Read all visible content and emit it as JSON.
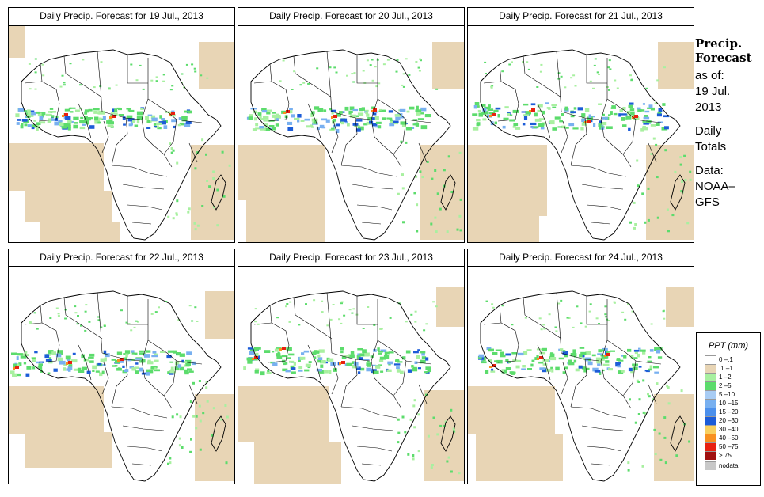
{
  "panels": [
    {
      "title": "Daily Precip. Forecast for  19 Jul., 2013",
      "variant": 0
    },
    {
      "title": "Daily Precip. Forecast for  20 Jul., 2013",
      "variant": 1
    },
    {
      "title": "Daily Precip. Forecast for  21 Jul., 2013",
      "variant": 2
    },
    {
      "title": "Daily Precip. Forecast for  22 Jul., 2013",
      "variant": 3
    },
    {
      "title": "Daily Precip. Forecast for  23 Jul., 2013",
      "variant": 4
    },
    {
      "title": "Daily Precip. Forecast for  24 Jul., 2013",
      "variant": 5
    }
  ],
  "side_info": {
    "title_line1": "Precip.",
    "title_line2": "Forecast",
    "as_of": "as of:",
    "date_line1": "19 Jul.",
    "date_line2": "2013",
    "daily_line1": "Daily",
    "daily_line2": "Totals",
    "data_line1": "Data:",
    "data_line2": "NOAA–",
    "data_line3": "GFS"
  },
  "legend": {
    "title": "PPT (mm)",
    "items": [
      {
        "label": "0 –.1",
        "color": "#ffffff"
      },
      {
        "label": ".1 –1",
        "color": "#e8d5b5"
      },
      {
        "label": "1 –2",
        "color": "#a8f0a0"
      },
      {
        "label": "2 –5",
        "color": "#5cdc6c"
      },
      {
        "label": "5 –10",
        "color": "#a8ccf4"
      },
      {
        "label": "10 –15",
        "color": "#78b0f0"
      },
      {
        "label": "15 –20",
        "color": "#4c90ec"
      },
      {
        "label": "20 –30",
        "color": "#1c5cd8"
      },
      {
        "label": "30 –40",
        "color": "#f8d060"
      },
      {
        "label": "40 –50",
        "color": "#f89020"
      },
      {
        "label": "50 –75",
        "color": "#e82010"
      },
      {
        "label": "> 75",
        "color": "#a01010"
      },
      {
        "label": "nodata",
        "color": "#c8c8c8"
      }
    ]
  }
}
